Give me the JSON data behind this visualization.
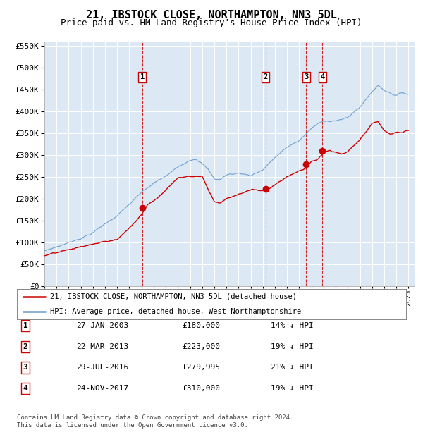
{
  "title": "21, IBSTOCK CLOSE, NORTHAMPTON, NN3 5DL",
  "subtitle": "Price paid vs. HM Land Registry's House Price Index (HPI)",
  "title_fontsize": 11,
  "subtitle_fontsize": 9,
  "background_color": "#ffffff",
  "plot_bg_color": "#dce9f5",
  "grid_color": "#ffffff",
  "ylim": [
    0,
    560000
  ],
  "yticks": [
    0,
    50000,
    100000,
    150000,
    200000,
    250000,
    300000,
    350000,
    400000,
    450000,
    500000,
    550000
  ],
  "ytick_labels": [
    "£0",
    "£50K",
    "£100K",
    "£150K",
    "£200K",
    "£250K",
    "£300K",
    "£350K",
    "£400K",
    "£450K",
    "£500K",
    "£550K"
  ],
  "sale_color": "#cc0000",
  "hpi_color": "#6699cc",
  "marker_color": "#cc0000",
  "vline_color": "#cc0000",
  "xlim_start": 1995,
  "xlim_end": 2025.5,
  "purchases": [
    {
      "date": 2003.07,
      "price": 180000,
      "label": "1"
    },
    {
      "date": 2013.22,
      "price": 223000,
      "label": "2"
    },
    {
      "date": 2016.57,
      "price": 279995,
      "label": "3"
    },
    {
      "date": 2017.9,
      "price": 310000,
      "label": "4"
    }
  ],
  "legend_items": [
    {
      "label": "21, IBSTOCK CLOSE, NORTHAMPTON, NN3 5DL (detached house)",
      "color": "#cc0000"
    },
    {
      "label": "HPI: Average price, detached house, West Northamptonshire",
      "color": "#6699cc"
    }
  ],
  "table_rows": [
    {
      "num": "1",
      "date": "27-JAN-2003",
      "price": "£180,000",
      "change": "14% ↓ HPI"
    },
    {
      "num": "2",
      "date": "22-MAR-2013",
      "price": "£223,000",
      "change": "19% ↓ HPI"
    },
    {
      "num": "3",
      "date": "29-JUL-2016",
      "price": "£279,995",
      "change": "21% ↓ HPI"
    },
    {
      "num": "4",
      "date": "24-NOV-2017",
      "price": "£310,000",
      "change": "19% ↓ HPI"
    }
  ],
  "footnote": "Contains HM Land Registry data © Crown copyright and database right 2024.\nThis data is licensed under the Open Government Licence v3.0."
}
